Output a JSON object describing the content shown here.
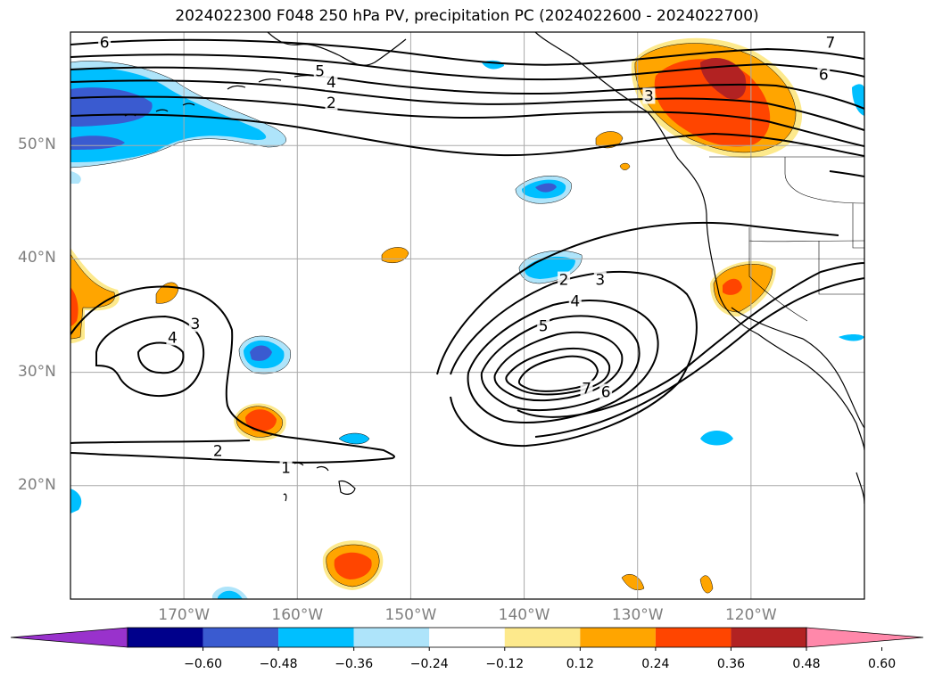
{
  "title": "2024022300 F048 250 hPa PV, precipitation PC (2024022600 - 2024022700)",
  "lat_labels": [
    {
      "text": "50°N",
      "lat": 50
    },
    {
      "text": "40°N",
      "lat": 40
    },
    {
      "text": "30°N",
      "lat": 30
    },
    {
      "text": "20°N",
      "lat": 20
    }
  ],
  "lon_labels": [
    {
      "text": "170°W",
      "lon": -170
    },
    {
      "text": "160°W",
      "lon": -160
    },
    {
      "text": "150°W",
      "lon": -150
    },
    {
      "text": "140°W",
      "lon": -140
    },
    {
      "text": "130°W",
      "lon": -130
    },
    {
      "text": "120°W",
      "lon": -120
    }
  ],
  "map_extent": {
    "lon_min": -180,
    "lon_max": -110,
    "lat_min": 10,
    "lat_max": 60
  },
  "colorbar": {
    "colors": [
      "#9932cc",
      "#00008b",
      "#3a5bd0",
      "#00bfff",
      "#aee4fa",
      "#ffffff",
      "#fde98c",
      "#ffa500",
      "#ff4500",
      "#b22222",
      "#ff88aa"
    ],
    "ticks": [
      {
        "text": "−0.60",
        "index": 1
      },
      {
        "text": "−0.48",
        "index": 2
      },
      {
        "text": "−0.36",
        "index": 3
      },
      {
        "text": "−0.24",
        "index": 4
      },
      {
        "text": "−0.12",
        "index": 5
      },
      {
        "text": "0.12",
        "index": 6
      },
      {
        "text": "0.24",
        "index": 7
      },
      {
        "text": "0.36",
        "index": 8
      },
      {
        "text": "0.48",
        "index": 9
      },
      {
        "text": "0.60",
        "index": 10
      }
    ]
  },
  "contour_labels": [
    {
      "text": "6",
      "lon": -177,
      "lat": 59
    },
    {
      "text": "5",
      "lon": -158,
      "lat": 56.5
    },
    {
      "text": "4",
      "lon": -157,
      "lat": 55.5
    },
    {
      "text": "2",
      "lon": -157,
      "lat": 53.7
    },
    {
      "text": "7",
      "lon": -113,
      "lat": 59
    },
    {
      "text": "6",
      "lon": -113.6,
      "lat": 56.2
    },
    {
      "text": "3",
      "lon": -129,
      "lat": 54.3
    },
    {
      "text": "3",
      "lon": -169,
      "lat": 34.2
    },
    {
      "text": "4",
      "lon": -171,
      "lat": 33
    },
    {
      "text": "2",
      "lon": -167,
      "lat": 23
    },
    {
      "text": "1",
      "lon": -161,
      "lat": 21.5
    },
    {
      "text": "2",
      "lon": -136.5,
      "lat": 38.1
    },
    {
      "text": "3",
      "lon": -133.3,
      "lat": 38.1
    },
    {
      "text": "4",
      "lon": -135.5,
      "lat": 36.2
    },
    {
      "text": "5",
      "lon": -138.3,
      "lat": 34
    },
    {
      "text": "7",
      "lon": -134.5,
      "lat": 28.5
    },
    {
      "text": "6",
      "lon": -132.8,
      "lat": 28.2
    }
  ]
}
